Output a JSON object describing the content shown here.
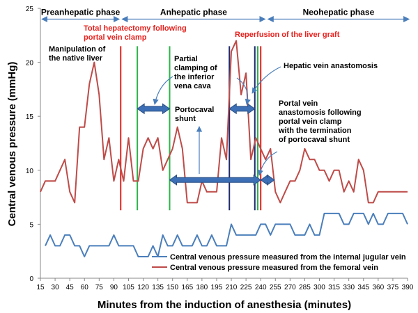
{
  "chart_data": {
    "type": "line",
    "xlabel": "Minutes from the induction of anesthesia (minutes)",
    "ylabel": "Central venous pressure (mmHg)",
    "xlim": [
      15,
      390
    ],
    "ylim": [
      0,
      25
    ],
    "xticks": [
      "15",
      "30",
      "45",
      "60",
      "75",
      "90",
      "105",
      "120",
      "135",
      "150",
      "165",
      "180",
      "195",
      "210",
      "225",
      "240",
      "255",
      "270",
      "285",
      "300",
      "315",
      "330",
      "345",
      "360",
      "375",
      "390"
    ],
    "yticks": [
      "0",
      "5",
      "10",
      "15",
      "20",
      "25"
    ],
    "series": [
      {
        "name": "Central venous pressure measured from the internal jugular vein",
        "color": "#4a7ebb",
        "x": [
          20,
          25,
          30,
          35,
          40,
          45,
          50,
          55,
          60,
          65,
          70,
          75,
          80,
          85,
          90,
          95,
          100,
          105,
          110,
          115,
          120,
          125,
          130,
          135,
          140,
          145,
          150,
          155,
          160,
          165,
          170,
          175,
          180,
          185,
          190,
          195,
          200,
          205,
          210,
          215,
          220,
          225,
          230,
          235,
          240,
          245,
          250,
          255,
          260,
          265,
          270,
          275,
          280,
          285,
          290,
          295,
          300,
          305,
          310,
          315,
          320,
          325,
          330,
          335,
          340,
          345,
          350,
          355,
          360,
          365,
          370,
          375,
          380,
          385,
          390
        ],
        "y": [
          3,
          4,
          3,
          3,
          4,
          4,
          3,
          3,
          2,
          3,
          3,
          3,
          3,
          3,
          4,
          3,
          3,
          3,
          3,
          2,
          2,
          2,
          3,
          2,
          4,
          3,
          3,
          4,
          3,
          3,
          3,
          4,
          3,
          3,
          4,
          3,
          3,
          3,
          5,
          4,
          4,
          4,
          4,
          4,
          5,
          5,
          4,
          5,
          5,
          5,
          5,
          4,
          4,
          4,
          5,
          4,
          4,
          6,
          6,
          6,
          6,
          5,
          5,
          6,
          6,
          6,
          5,
          6,
          5,
          5,
          6,
          6,
          6,
          6,
          5
        ]
      },
      {
        "name": "Central venous pressure measured from the femoral vein",
        "color": "#be4b48",
        "x": [
          15,
          20,
          25,
          30,
          35,
          40,
          45,
          50,
          55,
          60,
          65,
          70,
          75,
          80,
          85,
          90,
          95,
          100,
          105,
          110,
          115,
          120,
          125,
          130,
          135,
          140,
          145,
          150,
          155,
          160,
          165,
          170,
          175,
          180,
          185,
          190,
          195,
          200,
          205,
          210,
          215,
          220,
          225,
          230,
          235,
          240,
          245,
          250,
          255,
          260,
          265,
          270,
          275,
          280,
          285,
          290,
          295,
          300,
          305,
          310,
          315,
          320,
          325,
          330,
          335,
          340,
          345,
          350,
          355,
          360,
          365,
          370,
          375,
          380,
          385,
          390
        ],
        "y": [
          8,
          9,
          9,
          9,
          10,
          11,
          8,
          7,
          14,
          14,
          18,
          20,
          17,
          11,
          13,
          9,
          11,
          9,
          13,
          9,
          9,
          12,
          13,
          12,
          13,
          10,
          11,
          12,
          14,
          12,
          7,
          7,
          7,
          9,
          8,
          8,
          8,
          13,
          11,
          21,
          22,
          17,
          19,
          11,
          13,
          12,
          11,
          12,
          8,
          7,
          8,
          9,
          9,
          10,
          12,
          11,
          11,
          10,
          10,
          9,
          10,
          10,
          8,
          9,
          8,
          11,
          10,
          7,
          7,
          8,
          8,
          8,
          8,
          8,
          8,
          8
        ]
      }
    ],
    "phases": [
      {
        "label": "Preanhepatic phase",
        "from": 15,
        "to": 97
      },
      {
        "label": "Anhepatic phase",
        "from": 97,
        "to": 246
      },
      {
        "label": "Neohepatic phase",
        "from": 246,
        "to": 393
      }
    ],
    "vlines": [
      {
        "x": 97,
        "color": "#e8201c",
        "ymin": 6.3,
        "ymax": 21.5
      },
      {
        "x": 114,
        "color": "#2db34a",
        "ymin": 6.3,
        "ymax": 21.5
      },
      {
        "x": 147,
        "color": "#2db34a",
        "ymin": 6.3,
        "ymax": 21.5
      },
      {
        "x": 208,
        "color": "#1f2a6e",
        "ymin": 6.3,
        "ymax": 21.5
      },
      {
        "x": 234,
        "color": "#1f2a6e",
        "ymin": 6.3,
        "ymax": 21.5
      },
      {
        "x": 237,
        "color": "#2db34a",
        "ymin": 6.3,
        "ymax": 21.5
      },
      {
        "x": 240,
        "color": "#e8201c",
        "ymin": 6.3,
        "ymax": 21.5
      }
    ],
    "spans": [
      {
        "from": 114,
        "to": 147,
        "y": 15.7
      },
      {
        "from": 208,
        "to": 234,
        "y": 15.7
      },
      {
        "from": 147,
        "to": 240,
        "y": 9.1
      },
      {
        "from": 240,
        "to": 254,
        "y": 9.1
      }
    ],
    "annotations": {
      "total_hepatectomy": [
        "Total hepatectomy following",
        "portal vein clamp"
      ],
      "reperfusion": "Reperfusion of the liver graft",
      "manipulation": [
        "Manipulation of",
        "the native liver"
      ],
      "partial_clamping": [
        "Partial",
        "clamping of",
        "the inferior",
        "vena cava"
      ],
      "hepatic_vein": "Hepatic vein anastomosis",
      "portocaval": [
        "Portocaval",
        "shunt"
      ],
      "portal_vein": [
        "Portal vein",
        "anastomosis following",
        "portal vein clamp",
        "with the termination",
        "of portocaval shunt"
      ]
    }
  }
}
